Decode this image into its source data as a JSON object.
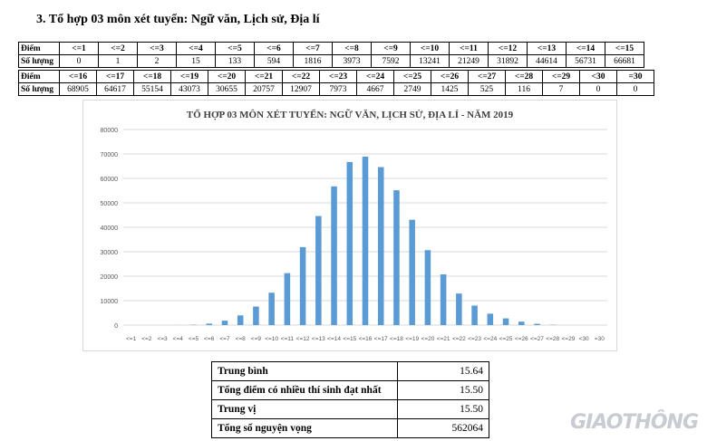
{
  "heading": "3. Tổ hợp 03 môn xét tuyển: Ngữ văn, Lịch sử, Địa lí",
  "table1": {
    "score_label": "Điểm",
    "count_label": "Số lượng",
    "scores": [
      "<=1",
      "<=2",
      "<=3",
      "<=4",
      "<=5",
      "<=6",
      "<=7",
      "<=8",
      "<=9",
      "<=10",
      "<=11",
      "<=12",
      "<=13",
      "<=14",
      "<=15"
    ],
    "counts": [
      "0",
      "1",
      "2",
      "15",
      "133",
      "594",
      "1816",
      "3973",
      "7592",
      "13241",
      "21249",
      "31892",
      "44614",
      "56731",
      "66681"
    ]
  },
  "table2": {
    "score_label": "Điểm",
    "count_label": "Số lượng",
    "scores": [
      "<=16",
      "<=17",
      "<=18",
      "<=19",
      "<=20",
      "<=21",
      "<=22",
      "<=23",
      "<=24",
      "<=25",
      "<=26",
      "<=27",
      "<=28",
      "<=29",
      "<30",
      "=30"
    ],
    "counts": [
      "68905",
      "64617",
      "55154",
      "43073",
      "30655",
      "20757",
      "12907",
      "7973",
      "4667",
      "2749",
      "1425",
      "525",
      "116",
      "7",
      "0",
      "0"
    ]
  },
  "chart_data": {
    "type": "bar",
    "title": "TỔ HỢP 03 MÔN XÉT TUYỂN: NGỮ VĂN, LỊCH SỬ, ĐỊA LÍ - NĂM 2019",
    "categories": [
      "<=1",
      "<=2",
      "<=3",
      "<=4",
      "<=5",
      "<=6",
      "<=7",
      "<=8",
      "<=9",
      "<=10",
      "<=11",
      "<=12",
      "<=13",
      "<=14",
      "<=15",
      "<=16",
      "<=17",
      "<=18",
      "<=19",
      "<=20",
      "<=21",
      "<=22",
      "<=23",
      "<=24",
      "<=25",
      "<=26",
      "<=27",
      "<=28",
      "<=29",
      "<30",
      "=30"
    ],
    "values": [
      0,
      1,
      2,
      15,
      133,
      594,
      1816,
      3973,
      7592,
      13241,
      21249,
      31892,
      44614,
      56731,
      66681,
      68905,
      64617,
      55154,
      43073,
      30655,
      20757,
      12907,
      7973,
      4667,
      2749,
      1425,
      525,
      116,
      7,
      0,
      0
    ],
    "yticks": [
      0,
      10000,
      20000,
      30000,
      40000,
      50000,
      60000,
      70000,
      80000
    ],
    "ylim": [
      0,
      80000
    ],
    "grid": true,
    "xlabel": "",
    "ylabel": "",
    "bar_color": "#5b9bd5",
    "grid_color": "#d9d9d9"
  },
  "summary": [
    {
      "label": "Trung bình",
      "value": "15.64"
    },
    {
      "label": "Tổng điểm có nhiều thí sinh đạt nhất",
      "value": "15.50"
    },
    {
      "label": "Trung vị",
      "value": "15.50"
    },
    {
      "label": "Tổng số nguyện vọng",
      "value": "562064"
    }
  ],
  "watermark": "GIAOTHÔNG"
}
